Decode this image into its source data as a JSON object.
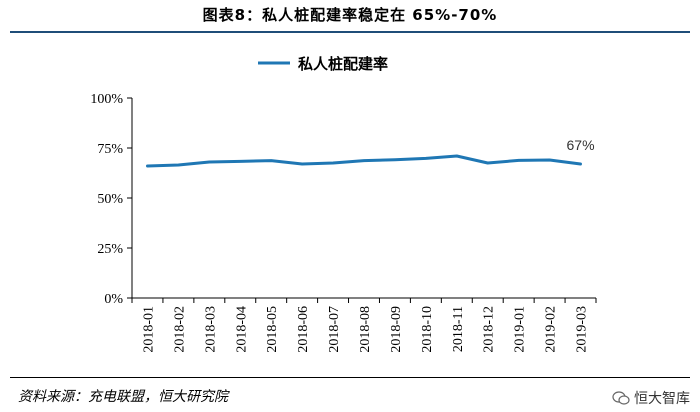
{
  "title": "图表8：私人桩配建率稳定在 65%-70%",
  "source": "资料来源：充电联盟，恒大研究院",
  "brand": "恒大智库",
  "chart_data": {
    "type": "line",
    "categories": [
      "2018-01",
      "2018-02",
      "2018-03",
      "2018-04",
      "2018-05",
      "2018-06",
      "2018-07",
      "2018-08",
      "2018-09",
      "2018-10",
      "2018-11",
      "2018-12",
      "2019-01",
      "2019-02",
      "2019-03"
    ],
    "series": [
      {
        "name": "私人桩配建率",
        "values": [
          66,
          66.5,
          68,
          68.3,
          68.7,
          67,
          67.5,
          68.7,
          69.1,
          69.8,
          71,
          67.5,
          68.8,
          69,
          67
        ],
        "color": "#1f77b4"
      }
    ],
    "yticks": [
      "0%",
      "25%",
      "50%",
      "75%",
      "100%"
    ],
    "ylim": [
      0,
      100
    ],
    "annotation": "67%",
    "legend_position": "top-center",
    "grid": false
  }
}
